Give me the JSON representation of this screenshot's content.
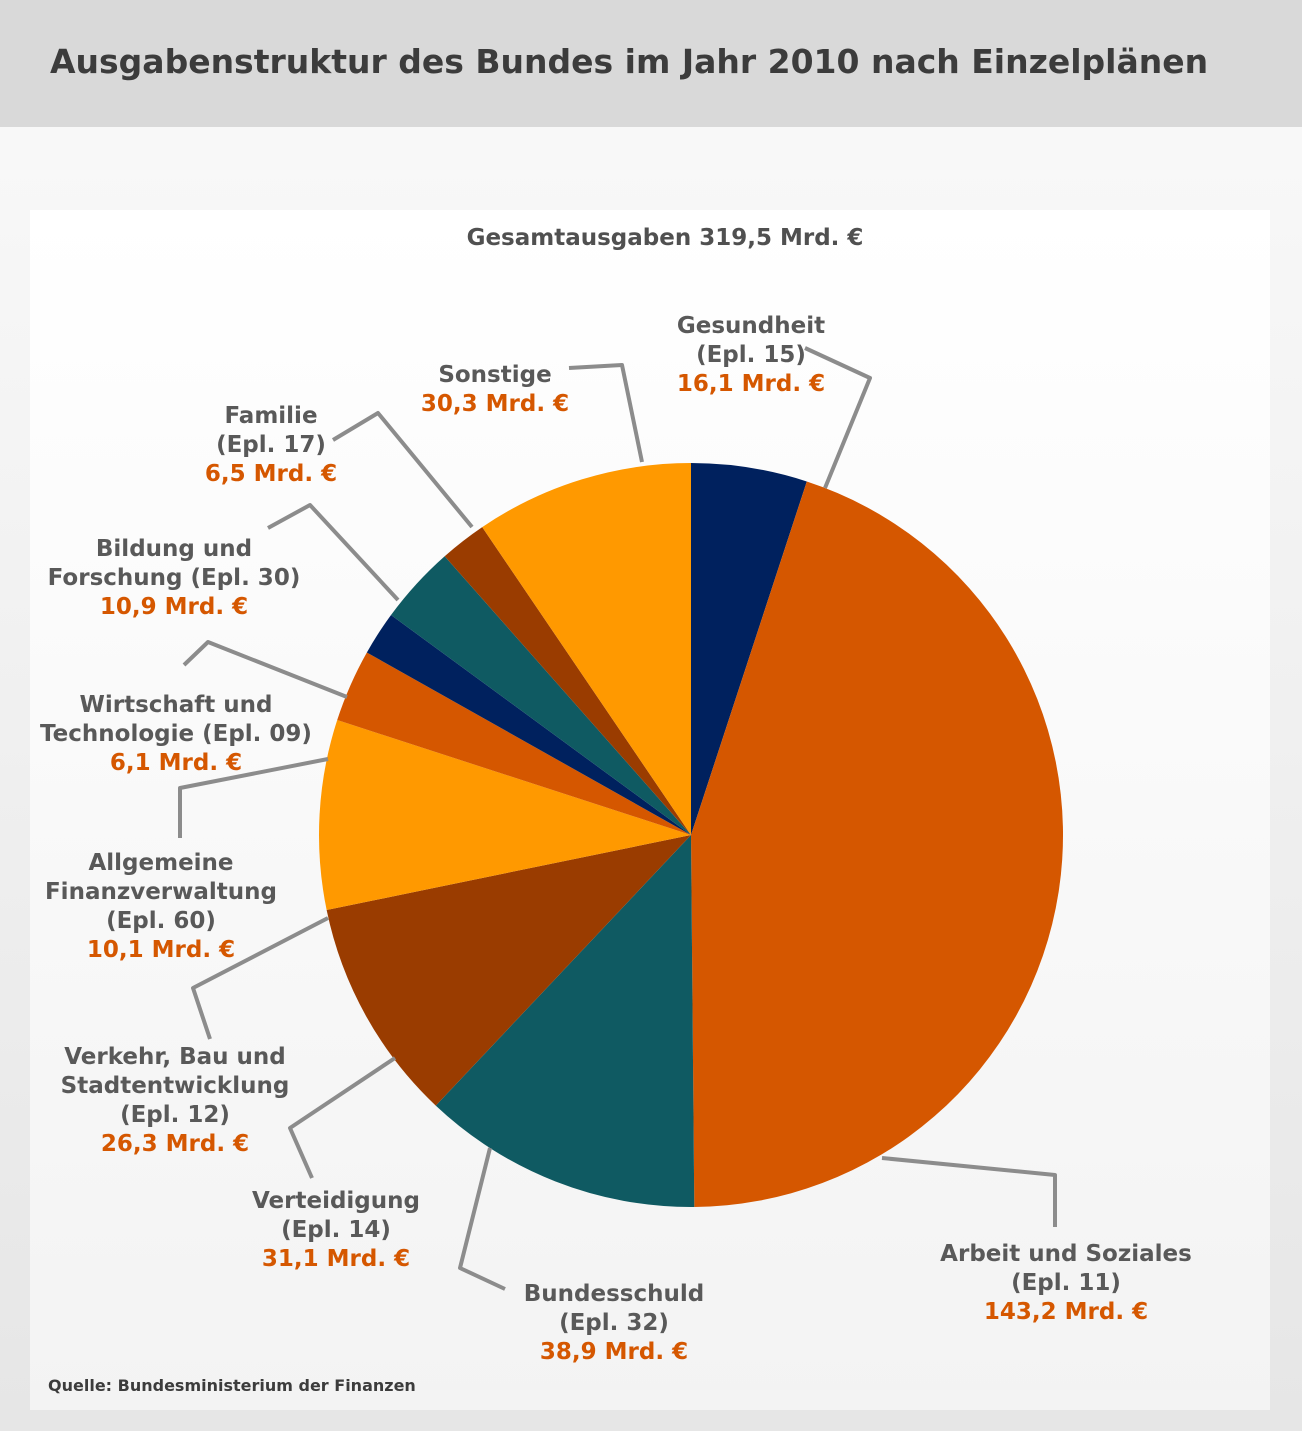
{
  "title": "Ausgabenstruktur des Bundes im Jahr 2010 nach Einzelplänen",
  "source": "Quelle: Bundesministerium der Finanzen",
  "chart_data": {
    "type": "pie",
    "title": "Ausgabenstruktur des Bundes im Jahr 2010 nach Einzelplänen",
    "subtitle": "Gesamtausgaben 319,5 Mrd. €",
    "total": 319.5,
    "unit": "Mrd. €",
    "slices": [
      {
        "key": "gesundheit",
        "lines": [
          "Gesundheit",
          "(Epl. 15)"
        ],
        "value": 16.1,
        "value_text": "16,1 Mrd. €",
        "color": "#00215e"
      },
      {
        "key": "arbeit",
        "lines": [
          "Arbeit und Soziales",
          "(Epl. 11)"
        ],
        "value": 143.2,
        "value_text": "143,2 Mrd. €",
        "color": "#d55700"
      },
      {
        "key": "bundesschuld",
        "lines": [
          "Bundesschuld",
          "(Epl. 32)"
        ],
        "value": 38.9,
        "value_text": "38,9 Mrd. €",
        "color": "#0f5a62"
      },
      {
        "key": "verteidigung",
        "lines": [
          "Verteidigung",
          "(Epl. 14)"
        ],
        "value": 31.1,
        "value_text": "31,1 Mrd. €",
        "color": "#9a3c00"
      },
      {
        "key": "verkehr",
        "lines": [
          "Verkehr, Bau und",
          "Stadtentwicklung",
          "(Epl. 12)"
        ],
        "value": 26.3,
        "value_text": "26,3 Mrd. €",
        "color": "#ff9900"
      },
      {
        "key": "finanzverwaltung",
        "lines": [
          "Allgemeine",
          "Finanzverwaltung",
          "(Epl. 60)"
        ],
        "value": 10.1,
        "value_text": "10,1 Mrd. €",
        "color": "#d55700"
      },
      {
        "key": "wirtschaft",
        "lines": [
          "Wirtschaft und",
          "Technologie (Epl. 09)"
        ],
        "value": 6.1,
        "value_text": "6,1 Mrd. €",
        "color": "#00215e"
      },
      {
        "key": "bildung",
        "lines": [
          "Bildung und",
          "Forschung (Epl. 30)"
        ],
        "value": 10.9,
        "value_text": "10,9 Mrd. €",
        "color": "#0f5a62"
      },
      {
        "key": "familie",
        "lines": [
          "Familie",
          "(Epl. 17)"
        ],
        "value": 6.5,
        "value_text": "6,5 Mrd. €",
        "color": "#9a3c00"
      },
      {
        "key": "sonstige",
        "lines": [
          "Sonstige"
        ],
        "value": 30.3,
        "value_text": "30,3 Mrd. €",
        "color": "#ff9900"
      }
    ]
  }
}
